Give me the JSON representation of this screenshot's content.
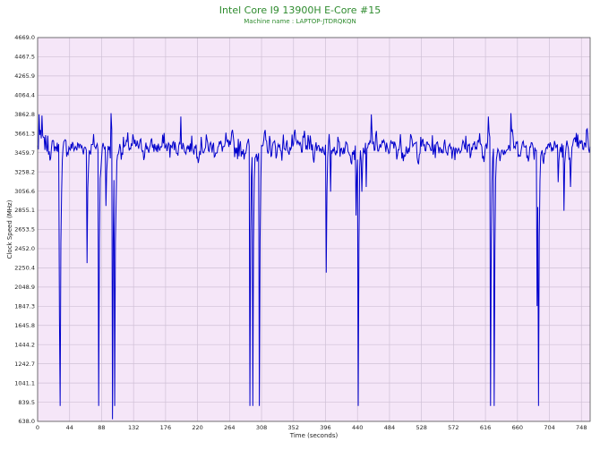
{
  "chart_data": {
    "type": "line",
    "title": "Intel Core I9 13900H E-Core #15",
    "subtitle": "Machine name : LAPTOP-JTDRQKQN",
    "xlabel": "Time (seconds)",
    "ylabel": "Clock Speed (MHz)",
    "xlim": [
      0,
      760
    ],
    "ylim": [
      638.0,
      4669.0
    ],
    "x_ticks": [
      0,
      44,
      88,
      132,
      176,
      220,
      264,
      308,
      352,
      396,
      440,
      484,
      528,
      572,
      616,
      660,
      704,
      748
    ],
    "y_ticks": [
      638.0,
      839.5,
      1041.1,
      1242.7,
      1444.2,
      1645.8,
      1847.3,
      2048.9,
      2250.4,
      2452.0,
      2653.5,
      2855.1,
      3056.6,
      3258.2,
      3459.7,
      3661.3,
      3862.8,
      4064.4,
      4265.9,
      4467.5,
      4669.0
    ],
    "grid": true,
    "background_color": "#f5e6f8",
    "grid_color": "#cfc0d6",
    "series": [
      {
        "color": "#0000cc",
        "baseline": 3520,
        "noise_amplitude": 120,
        "peaks": [
          [
            2,
            3862
          ],
          [
            6,
            3850
          ],
          [
            101,
            3875
          ],
          [
            197,
            3840
          ],
          [
            459,
            3862
          ],
          [
            620,
            3840
          ],
          [
            651,
            3875
          ],
          [
            755,
            3700
          ]
        ],
        "dips": [
          [
            30,
            1750
          ],
          [
            31,
            800
          ],
          [
            68,
            2300
          ],
          [
            84,
            800
          ],
          [
            94,
            2900
          ],
          [
            103,
            660
          ],
          [
            106,
            800
          ],
          [
            108,
            2950
          ],
          [
            292,
            800
          ],
          [
            296,
            800
          ],
          [
            305,
            800
          ],
          [
            397,
            2200
          ],
          [
            403,
            3050
          ],
          [
            438,
            2800
          ],
          [
            441,
            800
          ],
          [
            446,
            3050
          ],
          [
            452,
            3100
          ],
          [
            623,
            800
          ],
          [
            628,
            800
          ],
          [
            687,
            1850
          ],
          [
            689,
            800
          ],
          [
            716,
            3150
          ],
          [
            724,
            2850
          ],
          [
            733,
            3100
          ]
        ]
      }
    ]
  }
}
